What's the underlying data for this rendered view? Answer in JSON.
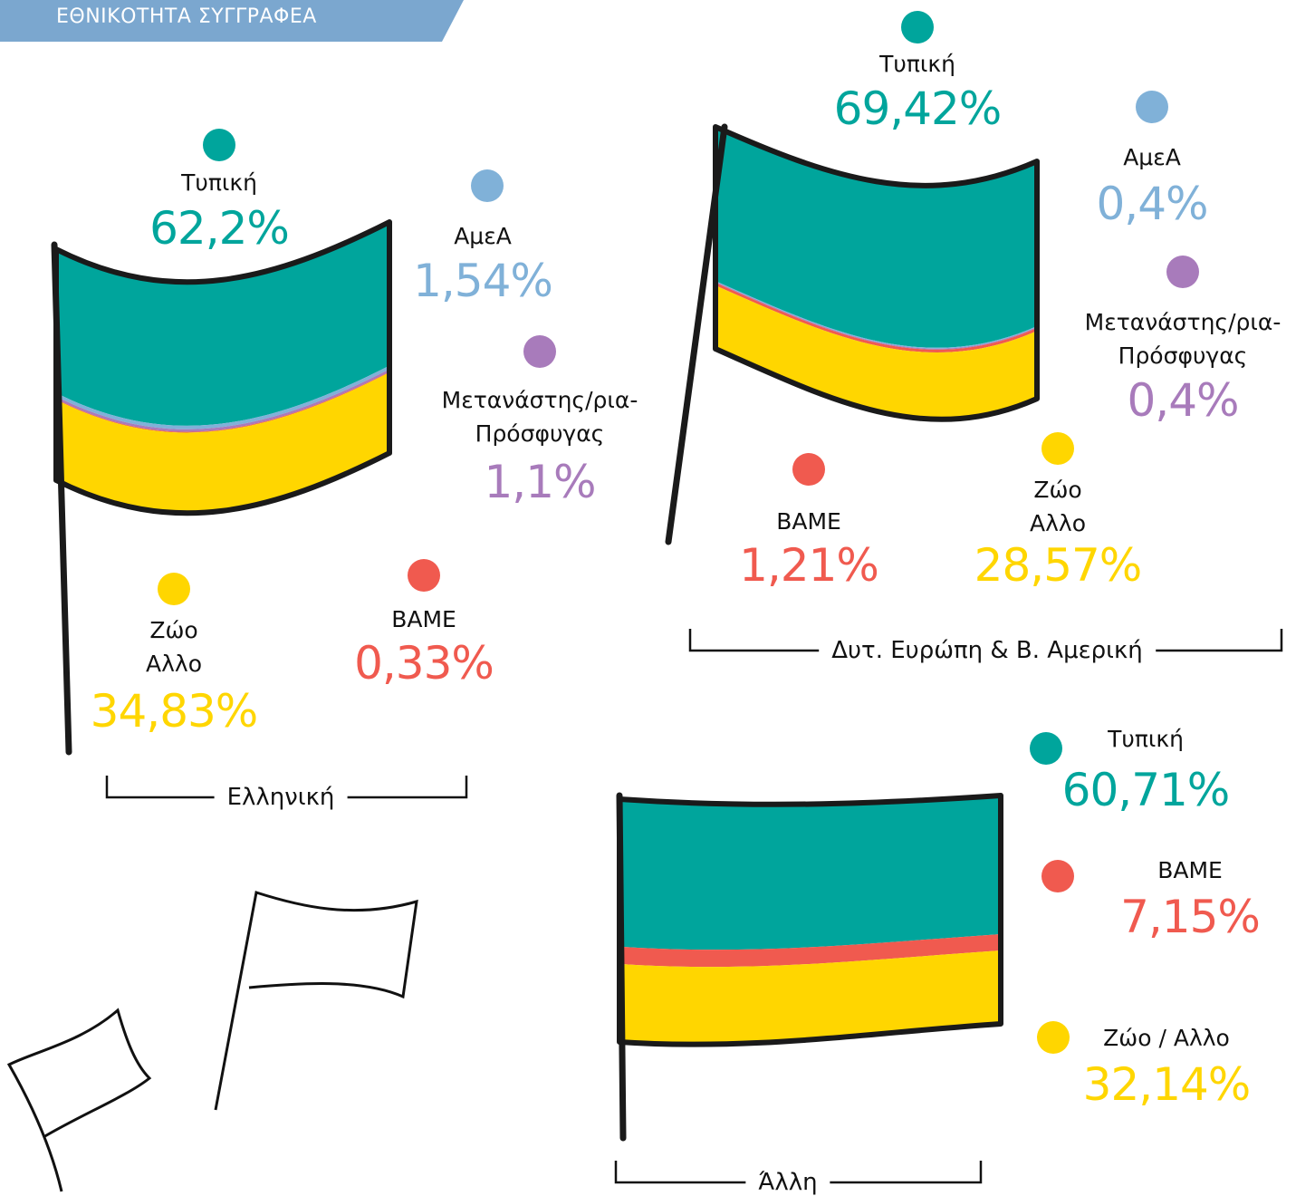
{
  "header": {
    "title": "ΕΘΝΙΚΟΤΗΤΑ ΣΥΓΓΡΑΦΕΑ"
  },
  "chart_data": [
    {
      "type": "flag",
      "title": "Ελληνική",
      "series": [
        {
          "name": "Τυπική",
          "color": "#00a59c",
          "values": [
            62.2
          ],
          "value_labels": [
            "62,2%"
          ]
        },
        {
          "name": "ΑμεΑ",
          "color": "#80b1d8",
          "values": [
            1.54
          ],
          "value_labels": [
            "1,54%"
          ]
        },
        {
          "name": "Μετανάστης/ρια-Πρόσφυγας",
          "color": "#a87bbb",
          "values": [
            1.1
          ],
          "value_labels": [
            "1,1%"
          ]
        },
        {
          "name": "BAME",
          "color": "#f05a4f",
          "values": [
            0.33
          ],
          "value_labels": [
            "0,33%"
          ]
        },
        {
          "name": "Ζώο Αλλο",
          "color": "#ffd600",
          "values": [
            34.83
          ],
          "value_labels": [
            "34,83%"
          ]
        }
      ]
    },
    {
      "type": "flag",
      "title": "Δυτ. Ευρώπη & Β. Αμερική",
      "series": [
        {
          "name": "Τυπική",
          "color": "#00a59c",
          "values": [
            69.42
          ],
          "value_labels": [
            "69,42%"
          ]
        },
        {
          "name": "ΑμεΑ",
          "color": "#80b1d8",
          "values": [
            0.4
          ],
          "value_labels": [
            "0,4%"
          ]
        },
        {
          "name": "Μετανάστης/ρια-Πρόσφυγας",
          "color": "#a87bbb",
          "values": [
            0.4
          ],
          "value_labels": [
            "0,4%"
          ]
        },
        {
          "name": "BAME",
          "color": "#f05a4f",
          "values": [
            1.21
          ],
          "value_labels": [
            "1,21%"
          ]
        },
        {
          "name": "Ζώο Αλλο",
          "color": "#ffd600",
          "values": [
            28.57
          ],
          "value_labels": [
            "28,57%"
          ]
        }
      ]
    },
    {
      "type": "flag",
      "title": "Άλλη",
      "series": [
        {
          "name": "Τυπική",
          "color": "#00a59c",
          "values": [
            60.71
          ],
          "value_labels": [
            "60,71%"
          ]
        },
        {
          "name": "BAME",
          "color": "#f05a4f",
          "values": [
            7.15
          ],
          "value_labels": [
            "7,15%"
          ]
        },
        {
          "name": "Ζώο / Αλλο",
          "color": "#ffd600",
          "values": [
            32.14
          ],
          "value_labels": [
            "32,14%"
          ]
        }
      ]
    }
  ]
}
